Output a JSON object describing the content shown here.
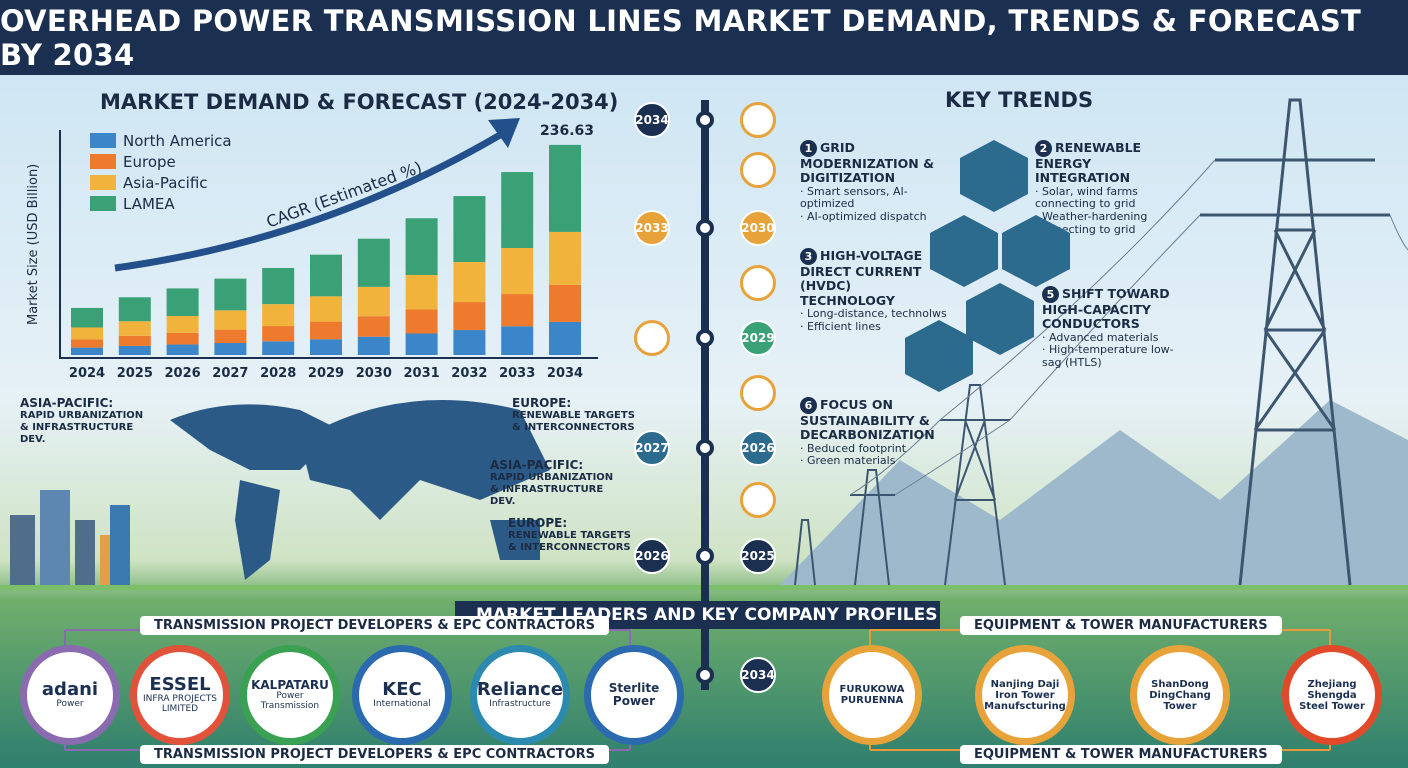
{
  "header": {
    "title": "OVERHEAD POWER TRANSMISSION LINES MARKET DEMAND, TRENDS & FORECAST BY 2034"
  },
  "chart_data": {
    "type": "bar",
    "stacked": true,
    "title": "MARKET DEMAND & FORECAST (2024-2034)",
    "y_label": "Market Size (USD Billion)",
    "annotation": "CAGR (Estimated %)",
    "total_label": 236.63,
    "categories": [
      "2024",
      "2025",
      "2026",
      "2027",
      "2028",
      "2029",
      "2030",
      "2031",
      "2032",
      "2033",
      "2034"
    ],
    "series": [
      {
        "name": "North America",
        "color": "#3a86c8",
        "values": [
          8.3,
          10.2,
          11.8,
          13.5,
          15.4,
          17.7,
          20.6,
          24.2,
          28.1,
          32.3,
          37.2
        ]
      },
      {
        "name": "Europe",
        "color": "#ee7a2e",
        "values": [
          9.3,
          11.4,
          13.2,
          15.1,
          17.2,
          19.9,
          23.1,
          27.1,
          31.5,
          36.3,
          41.7
        ]
      },
      {
        "name": "Asia-Pacific",
        "color": "#f2b33d",
        "values": [
          13.4,
          16.4,
          18.9,
          21.7,
          24.7,
          28.5,
          33.0,
          38.8,
          45.1,
          51.9,
          59.7
        ]
      },
      {
        "name": "LAMEA",
        "color": "#3aa176",
        "values": [
          22.0,
          27.0,
          31.1,
          35.7,
          40.7,
          46.9,
          54.3,
          63.9,
          74.3,
          85.5,
          98.03
        ]
      }
    ],
    "ylim": [
      0,
      250
    ]
  },
  "timeline": {
    "labels": [
      "2034",
      "2033",
      "2030",
      "2029",
      "2027",
      "2026",
      "2026",
      "2025",
      "2034"
    ]
  },
  "map": {
    "labels": [
      {
        "title": "ASIA-PACIFIC:",
        "text": "RAPID URBANIZATION & INFRASTRUCTURE DEV."
      },
      {
        "title": "EUROPE:",
        "text": "RENEWABLE TARGETS & INTERCONNECTORS"
      },
      {
        "title": "ASIA-PACIFIC:",
        "text": "RAPID URBANIZATION & INFRASTRUCTURE DEV."
      },
      {
        "title": "EUROPE:",
        "text": "RENEWABLE TARGETS & INTERCONNECTORS"
      }
    ]
  },
  "key_trends": {
    "title": "KEY TRENDS",
    "items": [
      {
        "number": 1,
        "title": "GRID MODERNIZATION & DIGITIZATION",
        "points": [
          "Smart sensors, AI-optimized",
          "AI-optimized dispatch"
        ]
      },
      {
        "number": 2,
        "title": "RENEWABLE ENERGY INTEGRATION",
        "points": [
          "Solar, wind farms connecting to grid",
          "Weather-hardening connecting to grid"
        ]
      },
      {
        "number": 3,
        "title": "HIGH-VOLTAGE DIRECT CURRENT (HVDC) TECHNOLOGY",
        "points": [
          "Long-distance, technolws",
          "Efficient lines"
        ]
      },
      {
        "number": 5,
        "title": "SHIFT TOWARD HIGH-CAPACITY CONDUCTORS",
        "points": [
          "Advanced materials",
          "High-temperature low-sag (HTLS)"
        ]
      },
      {
        "number": 6,
        "title": "FOCUS ON SUSTAINABILITY & DECARBONIZATION",
        "points": [
          "Beduced footprint",
          "Green materials"
        ]
      }
    ]
  },
  "companies": {
    "title": "MARKET LEADERS AND KEY COMPANY PROFILES",
    "developers": {
      "heading": "TRANSMISSION PROJECT DEVELOPERS & EPC CONTRACTORS",
      "footer": "TRANSMISSION PROJECT DEVELOPERS & EPC CONTRACTORS",
      "logos": [
        {
          "name": "adani",
          "sub": "Power"
        },
        {
          "name": "ESSEL",
          "sub": "INFRA PROJECTS LIMITED"
        },
        {
          "name": "KALPATARU",
          "sub": "Power Transmission"
        },
        {
          "name": "KEC",
          "sub": "International"
        },
        {
          "name": "Reliance",
          "sub": "Infrastructure"
        },
        {
          "name": "Sterlite Power"
        }
      ]
    },
    "manufacturers": {
      "heading": "EQUIPMENT & TOWER MANUFACTURERS",
      "footer": "EQUIPMENT & TOWER MANUFACTURERS",
      "logos": [
        {
          "name": "FURUKOWA",
          "sub": "PURUENNA"
        },
        {
          "name": "Nanjing Daji Iron Tower Manufscturing"
        },
        {
          "name": "ShanDong DingChang Tower"
        },
        {
          "name": "Zhejiang Shengda Steel Tower"
        }
      ]
    }
  }
}
